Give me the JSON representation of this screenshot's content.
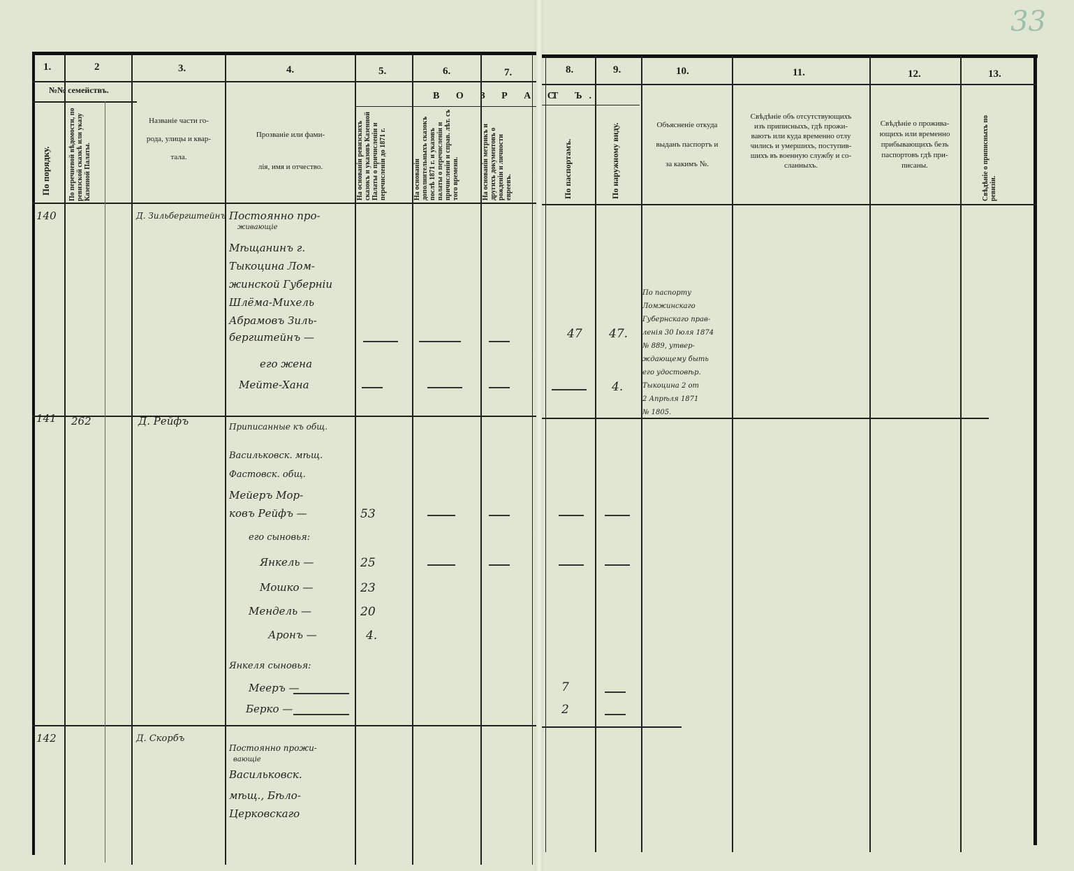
{
  "page_number": "33",
  "columns": {
    "left": [
      "1.",
      "2",
      "3.",
      "4.",
      "5.",
      "6.",
      "7."
    ],
    "right": [
      "8.",
      "9.",
      "10.",
      "11.",
      "12.",
      "13."
    ]
  },
  "headers": {
    "families": "№№ семействъ.",
    "by_order": "По порядку.",
    "by_list": "По перечневой вѣдомости, по ревизской сказкѣ или указу Казенной Палаты.",
    "street": [
      "Названіе части го-",
      "рода, улицы и квар-",
      "тала."
    ],
    "name": [
      "Прозваніе или фами-",
      "лія, имя и отчество."
    ],
    "age_left": "В О З Р А С",
    "age_right": "Т Ъ.",
    "age5": "На основаніи ревизскихъ сказокъ и указовъ Казенной Палаты о причисленіи и перечисленіи до 1871 г.",
    "age6": "На основаніи дополнительныхъ сказокъ послѣ 1871 г. и указовъ палаты о перечисленіи и причисленіи и справ. лѣт. съ того времени.",
    "age7": "На основаніи метрикъ и другихъ документовъ о рожденіи и личности евреевъ.",
    "age8": "По паспортамъ.",
    "age9": "По наружному виду.",
    "col10": [
      "Объясненіе откуда",
      "выданъ паспортъ и",
      "за какимъ №."
    ],
    "col11": [
      "Свѣдѣніе объ отсутствующихъ",
      "изъ приписныхъ, гдѣ прожи-",
      "ваютъ или куда временно отлу",
      "чились и умершихъ, поступив-",
      "шихъ въ военную службу и со-",
      "сланныхъ."
    ],
    "col12": [
      "Свѣдѣніе о прожива-",
      "ющихъ или временно",
      "прибывающихъ безъ",
      "паспортовъ гдѣ при-",
      "писаны."
    ],
    "col13": "Свѣдѣніе о приписныхъ по ревизіи."
  },
  "entries": [
    {
      "no": "140",
      "list_no": "",
      "street": "Д. Зильбергштейнъ",
      "lines": [
        "Постоянно про-",
        "живающіе",
        "Мѣщанинъ г.",
        "Тыкоцина Лом-",
        "жинской Губерніи",
        "Шлёма-Михель",
        "Абрамовъ Зиль-",
        "бергштейнъ —",
        "его жена",
        "Мейте-Хана"
      ],
      "ages": {
        "passport": "47",
        "appearance": "47.",
        "wife_appearance": "4."
      },
      "passport_note": [
        "По паспорту",
        "Ломжинскаго",
        "Губернскаго прав-",
        "ленія 30 Іюля 1874",
        "№ 889, утвер-",
        "ждающему быть",
        "его удостовѣр.",
        "Тыкоцина 2 от",
        "2 Апрѣля 1871",
        "№ 1805."
      ]
    },
    {
      "no": "141",
      "list_no": "262",
      "street": "Д. Рейфъ",
      "lines": [
        "Приписанные къ общ.",
        "Васильковск. мѣщ.",
        "Фастовск. общ.",
        "Мейеръ Мор-",
        "ковъ Рейфъ —",
        "его сыновья:",
        "Янкель —",
        "Мошко —",
        "Мендель —",
        "Аронъ —",
        "Янкеля сыновья:",
        "Мееръ —",
        "Берко —"
      ],
      "ages5": [
        "53",
        "25",
        "23",
        "20",
        "4."
      ],
      "ages8": [
        "7",
        "2"
      ]
    },
    {
      "no": "142",
      "list_no": "",
      "street": "Д. Скорбъ",
      "lines": [
        "Постоянно прожи-",
        "вающіе",
        "Васильковск.",
        "мѣщ., Бѣло-",
        "Церковскаго"
      ]
    }
  ]
}
